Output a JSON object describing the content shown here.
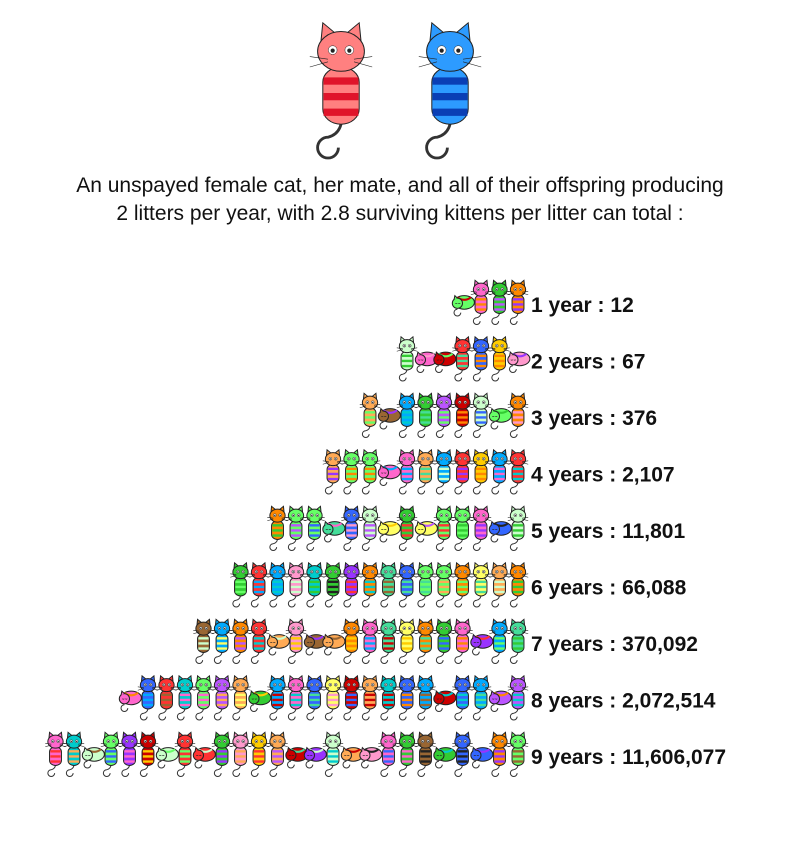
{
  "caption": {
    "line1": "An unspayed female cat, her mate, and all of their offspring producing",
    "line2": "2 litters per year, with 2.8 surviving kittens per litter can total :"
  },
  "parents": [
    {
      "name": "female-cat",
      "color": "#ff8080",
      "stripe": "#e0142a"
    },
    {
      "name": "male-cat",
      "color": "#2d9bff",
      "stripe": "#0a3fb5"
    }
  ],
  "chart_data": {
    "type": "bar",
    "orientation": "horizontal-pictograph",
    "categories": [
      "1 year",
      "2 years",
      "3 years",
      "4 years",
      "5 years",
      "6 years",
      "7 years",
      "8 years",
      "9 years"
    ],
    "values": [
      12,
      67,
      376,
      2107,
      11801,
      66088,
      370092,
      2072514,
      11606077
    ],
    "labels": [
      "1 year : 12",
      "2 years : 67",
      "3 years : 376",
      "4 years : 2,107",
      "5 years : 11,801",
      "6 years : 66,088",
      "7 years : 370,092",
      "8 years : 2,072,514",
      "9 years : 11,606,077"
    ],
    "icons_per_row": [
      4,
      7,
      9,
      11,
      14,
      16,
      18,
      22,
      26
    ]
  },
  "palette": [
    "#ff3333",
    "#33cc33",
    "#3366ff",
    "#ffcc00",
    "#ff66cc",
    "#9933ff",
    "#00cccc",
    "#ff8800",
    "#66ff66",
    "#996633",
    "#cc0000",
    "#ccffcc",
    "#ff99cc",
    "#00aaff",
    "#ffff66",
    "#bb55ff",
    "#44dd99",
    "#ffaa55"
  ]
}
